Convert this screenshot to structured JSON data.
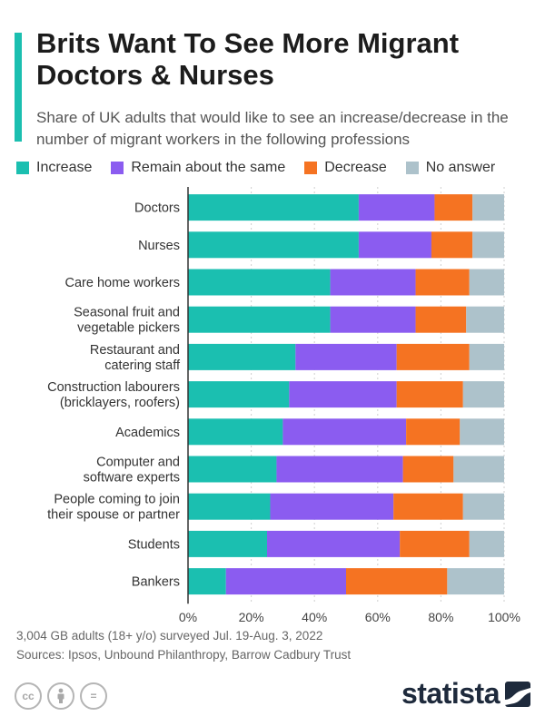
{
  "header": {
    "title": "Brits Want To See More Migrant Doctors & Nurses",
    "subtitle": "Share of UK adults that would like to see an increase/decrease in the number of migrant workers in the following professions"
  },
  "chart_data": {
    "type": "bar",
    "orientation": "horizontal",
    "stacked": true,
    "categories": [
      [
        "Doctors"
      ],
      [
        "Nurses"
      ],
      [
        "Care home workers"
      ],
      [
        "Seasonal fruit and",
        "vegetable pickers"
      ],
      [
        "Restaurant and",
        "catering staff"
      ],
      [
        "Construction labourers",
        "(bricklayers, roofers)"
      ],
      [
        "Academics"
      ],
      [
        "Computer and",
        "software experts"
      ],
      [
        "People coming to join",
        "their spouse or partner"
      ],
      [
        "Students"
      ],
      [
        "Bankers"
      ]
    ],
    "series": [
      {
        "name": "Increase",
        "color": "#1bbfb0",
        "values": [
          54,
          54,
          45,
          45,
          34,
          32,
          30,
          28,
          26,
          25,
          12
        ]
      },
      {
        "name": "Remain about the same",
        "color": "#8b5cf0",
        "values": [
          24,
          23,
          27,
          27,
          32,
          34,
          39,
          40,
          39,
          42,
          38
        ]
      },
      {
        "name": "Decrease",
        "color": "#f57322",
        "values": [
          12,
          13,
          17,
          16,
          23,
          21,
          17,
          16,
          22,
          22,
          32
        ]
      },
      {
        "name": "No answer",
        "color": "#adc2cb",
        "values": [
          10,
          10,
          11,
          12,
          11,
          13,
          14,
          16,
          13,
          11,
          18
        ]
      }
    ],
    "xlim": [
      0,
      100
    ],
    "x_ticks": [
      "0%",
      "20%",
      "40%",
      "60%",
      "80%",
      "100%"
    ],
    "grid": true,
    "legend_position": "top"
  },
  "footer": {
    "note": "3,004 GB adults (18+ y/o) surveyed Jul. 19-Aug. 3, 2022",
    "sources": "Sources: Ipsos, Unbound Philanthropy, Barrow Cadbury Trust"
  },
  "brand": {
    "name": "statista",
    "accent": "#1bbfb0"
  },
  "license_icons": [
    {
      "icon": "cc-icon",
      "glyph": "cc"
    },
    {
      "icon": "attribution-icon",
      "glyph": ""
    },
    {
      "icon": "no-derivatives-icon",
      "glyph": "="
    }
  ]
}
